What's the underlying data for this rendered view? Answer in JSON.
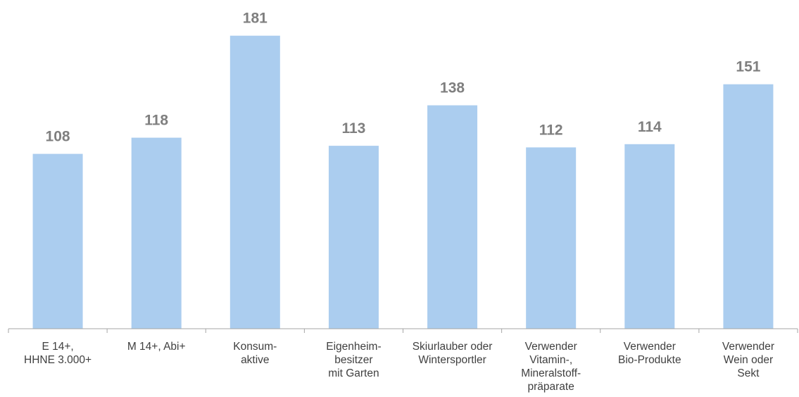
{
  "chart_data": {
    "type": "bar",
    "categories": [
      [
        "E 14+,",
        "HHNE 3.000+"
      ],
      [
        "M 14+, Abi+"
      ],
      [
        "Konsum-",
        "aktive"
      ],
      [
        "Eigenheim-",
        "besitzer",
        "mit Garten"
      ],
      [
        "Skiurlauber oder",
        "Wintersportler"
      ],
      [
        "Verwender",
        "Vitamin-,",
        "Mineralstoff-",
        "präparate"
      ],
      [
        "Verwender",
        "Bio-Produkte"
      ],
      [
        "Verwender",
        "Wein oder",
        "Sekt"
      ]
    ],
    "values": [
      108,
      118,
      181,
      113,
      138,
      112,
      114,
      151
    ],
    "ylim": [
      0,
      200
    ],
    "grid": false,
    "legend": "none",
    "colors": {
      "bar": "#abcdef",
      "value_label": "#7f7f7f",
      "axis": "#a6a6a6",
      "category_label": "#404040"
    }
  }
}
